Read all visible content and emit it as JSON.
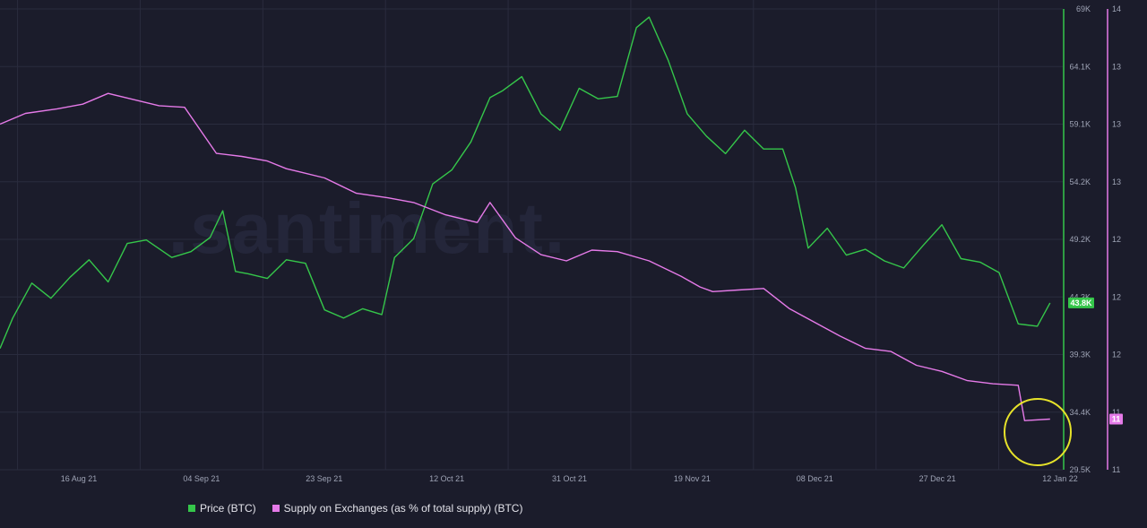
{
  "colors": {
    "background": "#1b1c2b",
    "price": "#35c64a",
    "supply": "#e57ae8",
    "grid": "#2a2c3e",
    "axis_text": "#9ea3b5",
    "highlight": "#e6e22a"
  },
  "chart_data": {
    "type": "line",
    "title": "",
    "watermark": ".santiment.",
    "x_tick_labels": [
      "16 Aug 21",
      "04 Sep 21",
      "23 Sep 21",
      "12 Oct 21",
      "31 Oct 21",
      "19 Nov 21",
      "08 Dec 21",
      "27 Dec 21",
      "12 Jan 22"
    ],
    "x_range": [
      "2021-07-31",
      "2022-01-14"
    ],
    "price_axis": {
      "ticks": [
        "69K",
        "64.1K",
        "59.1K",
        "54.2K",
        "49.2K",
        "44.3K",
        "39.3K",
        "34.4K",
        "29.5K"
      ],
      "ylim": [
        29500,
        69000
      ],
      "current_label": "43.8K"
    },
    "supply_axis": {
      "ticks": [
        "14",
        "13",
        "13",
        "13",
        "12",
        "12",
        "12",
        "11",
        "11"
      ],
      "ylim": [
        11,
        14
      ],
      "current_label": "11"
    },
    "series": [
      {
        "name": "Price (BTC)",
        "axis": "price",
        "x": [
          "2021-07-31",
          "2021-08-02",
          "2021-08-05",
          "2021-08-08",
          "2021-08-11",
          "2021-08-14",
          "2021-08-17",
          "2021-08-20",
          "2021-08-23",
          "2021-08-27",
          "2021-08-30",
          "2021-09-02",
          "2021-09-04",
          "2021-09-06",
          "2021-09-08",
          "2021-09-11",
          "2021-09-14",
          "2021-09-17",
          "2021-09-20",
          "2021-09-23",
          "2021-09-26",
          "2021-09-29",
          "2021-10-01",
          "2021-10-04",
          "2021-10-07",
          "2021-10-10",
          "2021-10-13",
          "2021-10-16",
          "2021-10-18",
          "2021-10-21",
          "2021-10-24",
          "2021-10-27",
          "2021-10-30",
          "2021-11-02",
          "2021-11-05",
          "2021-11-08",
          "2021-11-10",
          "2021-11-13",
          "2021-11-16",
          "2021-11-19",
          "2021-11-22",
          "2021-11-25",
          "2021-11-28",
          "2021-12-01",
          "2021-12-03",
          "2021-12-05",
          "2021-12-08",
          "2021-12-11",
          "2021-12-14",
          "2021-12-17",
          "2021-12-20",
          "2021-12-23",
          "2021-12-26",
          "2021-12-29",
          "2022-01-01",
          "2022-01-04",
          "2022-01-07",
          "2022-01-10",
          "2022-01-12"
        ],
        "values": [
          39900,
          42500,
          45500,
          44200,
          46000,
          47500,
          45600,
          48900,
          49200,
          47700,
          48200,
          49400,
          51700,
          46500,
          46300,
          45900,
          47500,
          47200,
          43200,
          42500,
          43300,
          42800,
          47700,
          49300,
          54000,
          55200,
          57600,
          61400,
          62000,
          63200,
          60000,
          58600,
          62200,
          61300,
          61500,
          67400,
          68300,
          64600,
          60000,
          58100,
          56600,
          58600,
          57000,
          57000,
          53700,
          48500,
          50200,
          47900,
          48400,
          47400,
          46800,
          48700,
          50500,
          47600,
          47300,
          46400,
          42000,
          41800,
          43800
        ]
      },
      {
        "name": "Supply on Exchanges (as % of total supply) (BTC)",
        "axis": "supply",
        "x": [
          "2021-07-31",
          "2021-08-04",
          "2021-08-09",
          "2021-08-13",
          "2021-08-17",
          "2021-08-21",
          "2021-08-25",
          "2021-08-29",
          "2021-09-03",
          "2021-09-07",
          "2021-09-11",
          "2021-09-14",
          "2021-09-16",
          "2021-09-20",
          "2021-09-25",
          "2021-09-30",
          "2021-10-04",
          "2021-10-09",
          "2021-10-14",
          "2021-10-16",
          "2021-10-20",
          "2021-10-24",
          "2021-10-28",
          "2021-11-01",
          "2021-11-05",
          "2021-11-10",
          "2021-11-15",
          "2021-11-18",
          "2021-11-20",
          "2021-11-24",
          "2021-11-28",
          "2021-12-02",
          "2021-12-06",
          "2021-12-10",
          "2021-12-14",
          "2021-12-18",
          "2021-12-22",
          "2021-12-26",
          "2021-12-30",
          "2022-01-03",
          "2022-01-07",
          "2022-01-08",
          "2022-01-12"
        ],
        "values": [
          13.25,
          13.32,
          13.35,
          13.38,
          13.45,
          13.41,
          13.37,
          13.36,
          13.06,
          13.04,
          13.01,
          12.96,
          12.94,
          12.9,
          12.8,
          12.77,
          12.74,
          12.66,
          12.61,
          12.74,
          12.51,
          12.4,
          12.36,
          12.43,
          12.42,
          12.36,
          12.26,
          12.19,
          12.16,
          12.17,
          12.18,
          12.05,
          11.96,
          11.87,
          11.79,
          11.77,
          11.68,
          11.64,
          11.58,
          11.56,
          11.55,
          11.32,
          11.33
        ]
      }
    ],
    "legend": [
      "Price (BTC)",
      "Supply on Exchanges (as % of total supply) (BTC)"
    ],
    "legend_position": "bottom-left",
    "grid": true
  }
}
